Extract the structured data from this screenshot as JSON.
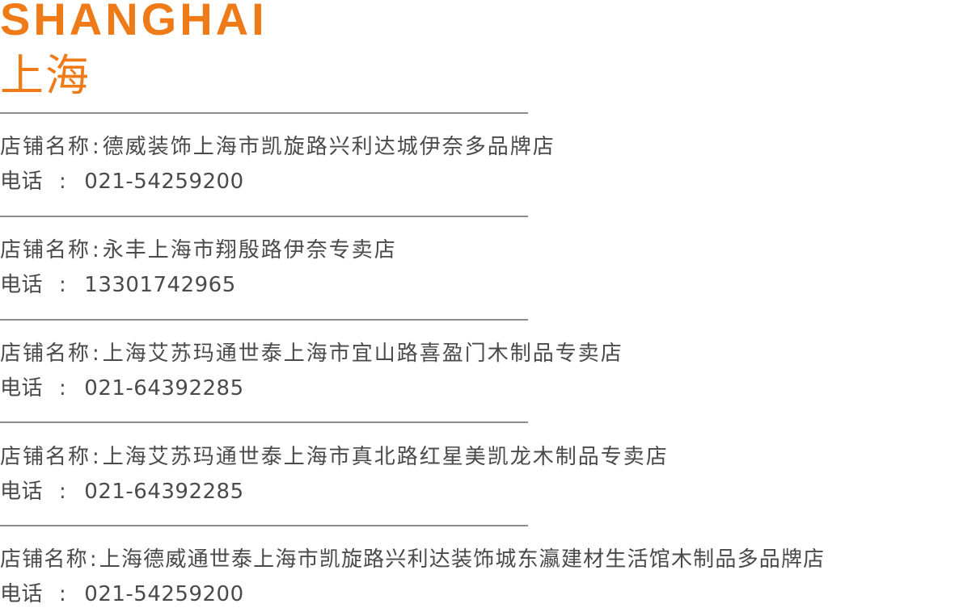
{
  "header": {
    "title_en": "SHANGHAI",
    "title_cn": "上海"
  },
  "labels": {
    "name": "店铺名称",
    "name_sep": ":",
    "phone": "电话",
    "phone_sep": ":"
  },
  "stores": [
    {
      "name": "德威装饰上海市凯旋路兴利达城伊奈多品牌店",
      "phone": "021-54259200"
    },
    {
      "name": "永丰上海市翔殷路伊奈专卖店",
      "phone": "13301742965"
    },
    {
      "name": "上海艾苏玛通世泰上海市宜山路喜盈门木制品专卖店",
      "phone": "021-64392285"
    },
    {
      "name": "上海艾苏玛通世泰上海市真北路红星美凯龙木制品专卖店",
      "phone": "021-64392285"
    },
    {
      "name": "上海德威通世泰上海市凯旋路兴利达装饰城东瀛建材生活馆木制品多品牌店",
      "phone": "021-54259200"
    }
  ],
  "colors": {
    "accent": "#ee7a18",
    "text": "#4a4a4a",
    "divider": "#8c8c8c"
  }
}
